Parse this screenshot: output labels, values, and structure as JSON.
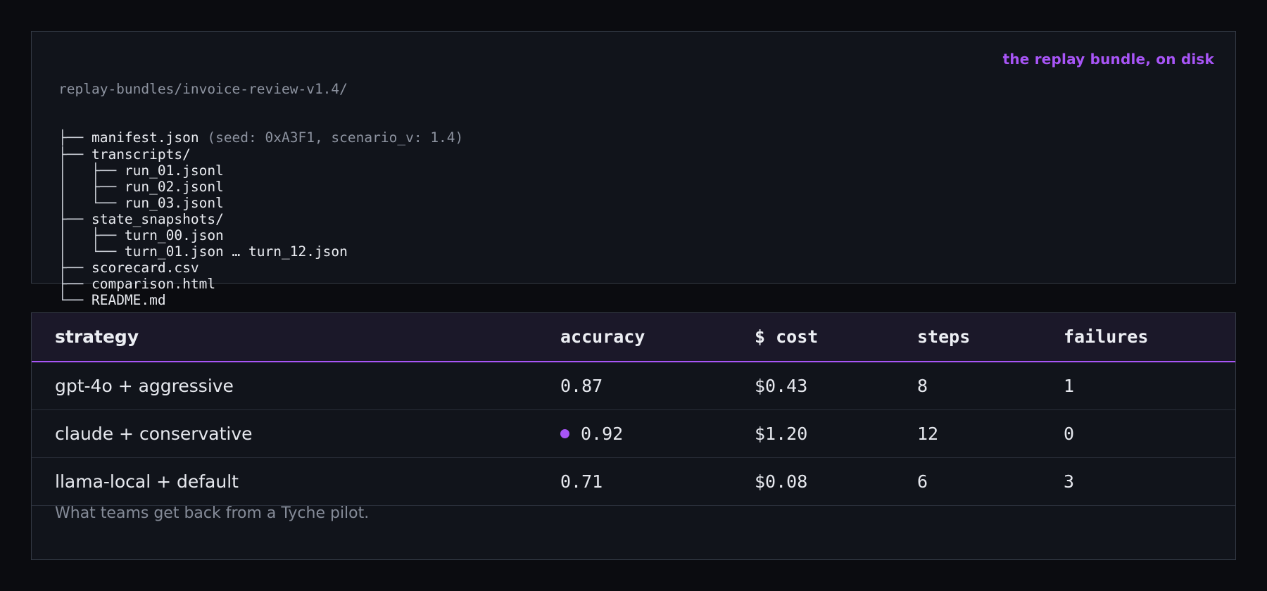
{
  "bundle": {
    "caption": "the replay bundle, on disk",
    "root": "replay-bundles/invoice-review-v1.4/",
    "entries": [
      {
        "prefix": "├── ",
        "name": "manifest.json",
        "note": " (seed: 0xA3F1, scenario_v: 1.4)"
      },
      {
        "prefix": "├── ",
        "name": "transcripts/",
        "note": ""
      },
      {
        "prefix": "│   ├── ",
        "name": "run_01.jsonl",
        "note": ""
      },
      {
        "prefix": "│   ├── ",
        "name": "run_02.jsonl",
        "note": ""
      },
      {
        "prefix": "│   └── ",
        "name": "run_03.jsonl",
        "note": ""
      },
      {
        "prefix": "├── ",
        "name": "state_snapshots/",
        "note": ""
      },
      {
        "prefix": "│   ├── ",
        "name": "turn_00.json",
        "note": ""
      },
      {
        "prefix": "│   └── ",
        "name": "turn_01.json … turn_12.json",
        "note": ""
      },
      {
        "prefix": "├── ",
        "name": "scorecard.csv",
        "note": ""
      },
      {
        "prefix": "├── ",
        "name": "comparison.html",
        "note": ""
      },
      {
        "prefix": "└── ",
        "name": "README.md",
        "note": ""
      }
    ]
  },
  "scorecard": {
    "headers": {
      "strategy": "strategy",
      "accuracy": "accuracy",
      "cost": "$ cost",
      "steps": "steps",
      "failures": "failures"
    },
    "rows": [
      {
        "strategy": "gpt-4o + aggressive",
        "accuracy": "0.87",
        "cost": "$0.43",
        "steps": "8",
        "failures": "1",
        "best": false
      },
      {
        "strategy": "claude + conservative",
        "accuracy": "0.92",
        "cost": "$1.20",
        "steps": "12",
        "failures": "0",
        "best": true
      },
      {
        "strategy": "llama-local + default",
        "accuracy": "0.71",
        "cost": "$0.08",
        "steps": "6",
        "failures": "3",
        "best": false
      }
    ],
    "caption": "What teams get back from a Tyche pilot."
  },
  "colors": {
    "accent": "#a855f7",
    "background": "#0b0c10",
    "panel": "#11141b",
    "header": "#1b1829"
  },
  "icons": {
    "best_marker": "filled-circle-icon"
  }
}
